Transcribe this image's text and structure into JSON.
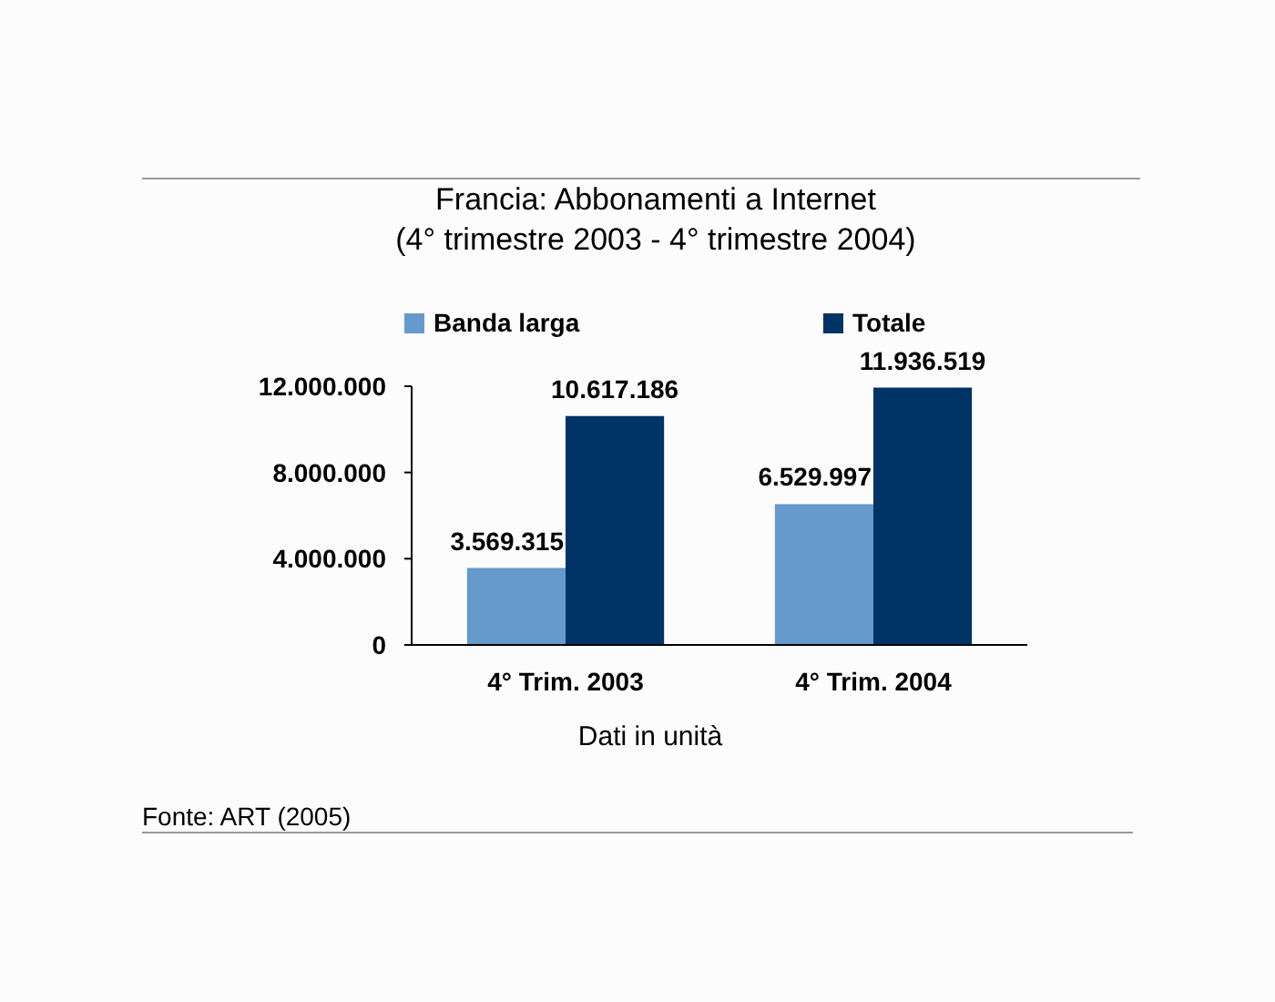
{
  "chart_data": {
    "type": "bar",
    "title": "Francia: Abbonamenti a Internet",
    "subtitle": "(4° trimestre 2003 - 4° trimestre 2004)",
    "xlabel": "Dati in unità",
    "categories": [
      "4° Trim. 2003",
      "4° Trim. 2004"
    ],
    "series": [
      {
        "name": "Banda larga",
        "color": "#6699cc",
        "values": [
          3569315,
          6529997
        ],
        "value_labels": [
          "3.569.315",
          "6.529.997"
        ]
      },
      {
        "name": "Totale",
        "color": "#003366",
        "values": [
          10617186,
          11936519
        ],
        "value_labels": [
          "10.617.186",
          "11.936.519"
        ]
      }
    ],
    "ylim": [
      0,
      12000000
    ],
    "yticks": [
      0,
      {
        "value": 4000000,
        "label": "4.000.000"
      },
      {
        "value": 8000000,
        "label": "8.000.000"
      },
      {
        "value": 12000000,
        "label": "12.000.000"
      }
    ],
    "grid": false,
    "legend": "top",
    "annotations": [
      "Fonte: ART (2005)"
    ]
  }
}
